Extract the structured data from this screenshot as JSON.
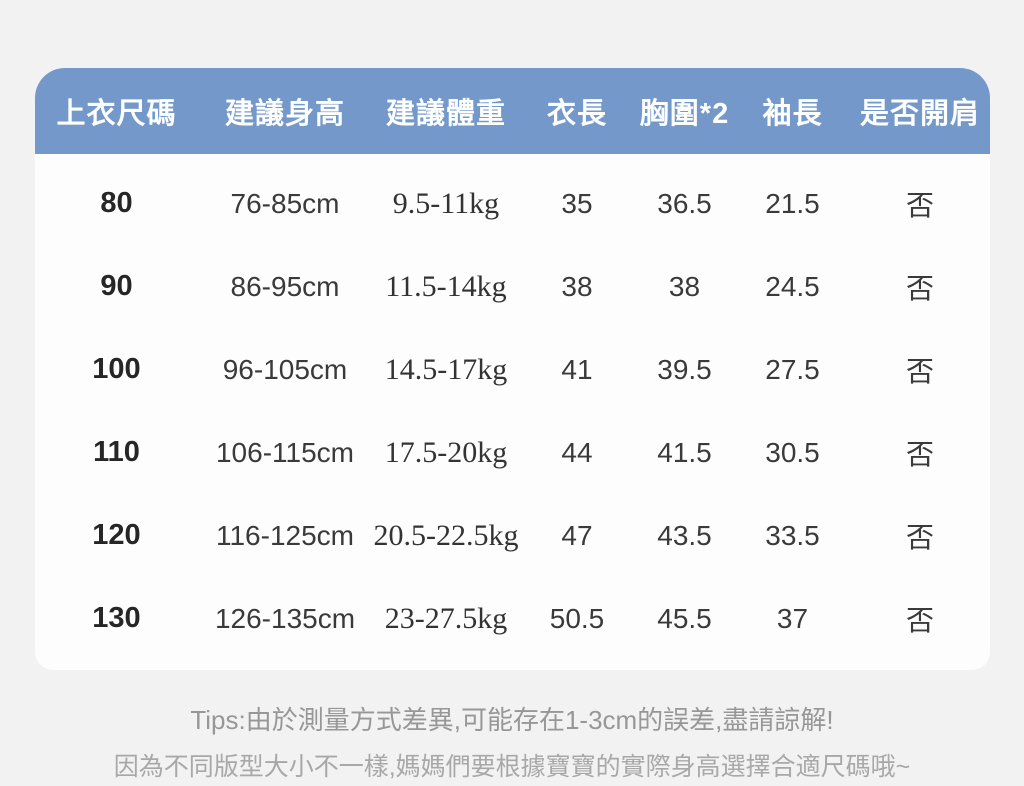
{
  "colors": {
    "header_bg": "#7598cb",
    "header_text": "#fdfefe",
    "body_text": "#3a3a3a",
    "tips_text": "#a0a0a0",
    "page_bg": "#f1f2f1",
    "table_bg": "#fdfdfd"
  },
  "chart_data": {
    "type": "table",
    "title": "",
    "columns": [
      "上衣尺碼",
      "建議身高",
      "建議體重",
      "衣長",
      "胸圍*2",
      "袖長",
      "是否開肩"
    ],
    "rows": [
      [
        "80",
        "76-85cm",
        "9.5-11kg",
        "35",
        "36.5",
        "21.5",
        "否"
      ],
      [
        "90",
        "86-95cm",
        "11.5-14kg",
        "38",
        "38",
        "24.5",
        "否"
      ],
      [
        "100",
        "96-105cm",
        "14.5-17kg",
        "41",
        "39.5",
        "27.5",
        "否"
      ],
      [
        "110",
        "106-115cm",
        "17.5-20kg",
        "44",
        "41.5",
        "30.5",
        "否"
      ],
      [
        "120",
        "116-125cm",
        "20.5-22.5kg",
        "47",
        "43.5",
        "33.5",
        "否"
      ],
      [
        "130",
        "126-135cm",
        "23-27.5kg",
        "50.5",
        "45.5",
        "37",
        "否"
      ]
    ]
  },
  "footer": {
    "tips_line1": "Tips:由於測量方式差異,可能存在1-3cm的誤差,盡請諒解!",
    "tips_line2": "因為不同版型大小不一樣,媽媽們要根據寶寶的實際身高選擇合適尺碼哦~"
  }
}
